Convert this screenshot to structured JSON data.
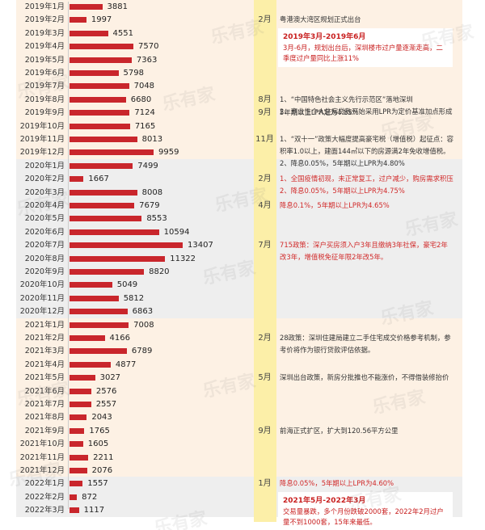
{
  "chart_data": {
    "type": "bar",
    "orientation": "horizontal",
    "categories": [
      "2019年1月",
      "2019年2月",
      "2019年3月",
      "2019年4月",
      "2019年5月",
      "2019年6月",
      "2019年7月",
      "2019年8月",
      "2019年9月",
      "2019年10月",
      "2019年11月",
      "2019年12月",
      "2020年1月",
      "2020年2月",
      "2020年3月",
      "2020年4月",
      "2020年5月",
      "2020年6月",
      "2020年7月",
      "2020年8月",
      "2020年9月",
      "2020年10月",
      "2020年11月",
      "2020年12月",
      "2021年1月",
      "2021年2月",
      "2021年3月",
      "2021年4月",
      "2021年5月",
      "2021年6月",
      "2021年7月",
      "2021年8月",
      "2021年9月",
      "2021年10月",
      "2021年11月",
      "2021年12月",
      "2022年1月",
      "2022年2月",
      "2022年3月"
    ],
    "values": [
      3881,
      1997,
      4551,
      7570,
      7363,
      5798,
      7048,
      6680,
      7124,
      7165,
      8013,
      9959,
      7499,
      1667,
      8008,
      7679,
      8553,
      10594,
      13407,
      11322,
      8820,
      5049,
      5812,
      6863,
      7008,
      4166,
      6789,
      4877,
      3027,
      2576,
      2557,
      2043,
      1765,
      1605,
      2211,
      2076,
      1557,
      872,
      1117
    ],
    "bar_color": "#c9262c",
    "events": [
      {
        "month": "2月",
        "row": 1,
        "text": "粤港澳大湾区规划正式出台",
        "color": "#333333"
      },
      {
        "month": "8月",
        "row": 7,
        "text": "1、“中国特色社会主义先行示范区”落地深圳\n2、商业性个人住房贷款开始采用LPR为定价基准加点形成",
        "color": "#333333"
      },
      {
        "month": "9月",
        "row": 8,
        "text": "5年期以上LPR定为4.85%",
        "color": "#333333"
      },
      {
        "month": "11月",
        "row": 10,
        "text": "1、“双十一”政策大幅度提高豪宅税（增值税）起征点：容积率1.0以上，建面144㎡以下的房源满2年免收增值税。\n2、降息0.05%，5年期以上LPR为4.80%",
        "color": "#333333"
      },
      {
        "month": "2月",
        "row": 13,
        "text": "1、全国疫情初现，未正常复工，过户减少，购房需求积压\n2、降息0.05%，5年期以上LPR为4.75%",
        "color": "#d12a2a"
      },
      {
        "month": "4月",
        "row": 15,
        "text": "降息0.1%，5年期以上LPR为4.65%",
        "color": "#d12a2a"
      },
      {
        "month": "7月",
        "row": 18,
        "text": "715政策：深户买房须入户3年且缴纳3年社保，豪宅2年改3年，增值税免征年限2年改5年。",
        "color": "#d12a2a"
      },
      {
        "month": "2月",
        "row": 25,
        "text": "28政策：深圳住建局建立二手住宅成交价格参考机制，参考价将作为银行贷款评估依据。",
        "color": "#333333"
      },
      {
        "month": "5月",
        "row": 28,
        "text": "深圳出台政策，新房分批推也不能涨价，不得借装修抬价",
        "color": "#333333"
      },
      {
        "month": "9月",
        "row": 32,
        "text": "前海正式扩区，扩大到120.56平方公里",
        "color": "#333333"
      },
      {
        "month": "1月",
        "row": 36,
        "text": "降息0.05%，5年期以上LPR为4.60%",
        "color": "#d12a2a"
      }
    ],
    "highlight_boxes": [
      {
        "row": 2,
        "title": "2019年3月-2019年6月",
        "body": "3月-6月，规划出台后，深圳楼市过户量逐渐走高，二季度过户量同比上涨11%"
      },
      {
        "row": 37,
        "title": "2021年5月-2022年3月",
        "body": "交易量暴跌，多个月份跌破2000套，2022年2月过户量不到1000套，15年来最低。"
      }
    ],
    "year_groups": [
      {
        "year": "2019",
        "start": 0,
        "count": 12,
        "color": "#fdf1e4"
      },
      {
        "year": "2020",
        "start": 12,
        "count": 12,
        "color": "#eeeeee"
      },
      {
        "year": "2021",
        "start": 24,
        "count": 12,
        "color": "#fdf1e4"
      },
      {
        "year": "2022",
        "start": 36,
        "count": 3,
        "color": "#eeeeee"
      }
    ],
    "month_column_color": "#fcefa8"
  },
  "watermark": "乐有家"
}
